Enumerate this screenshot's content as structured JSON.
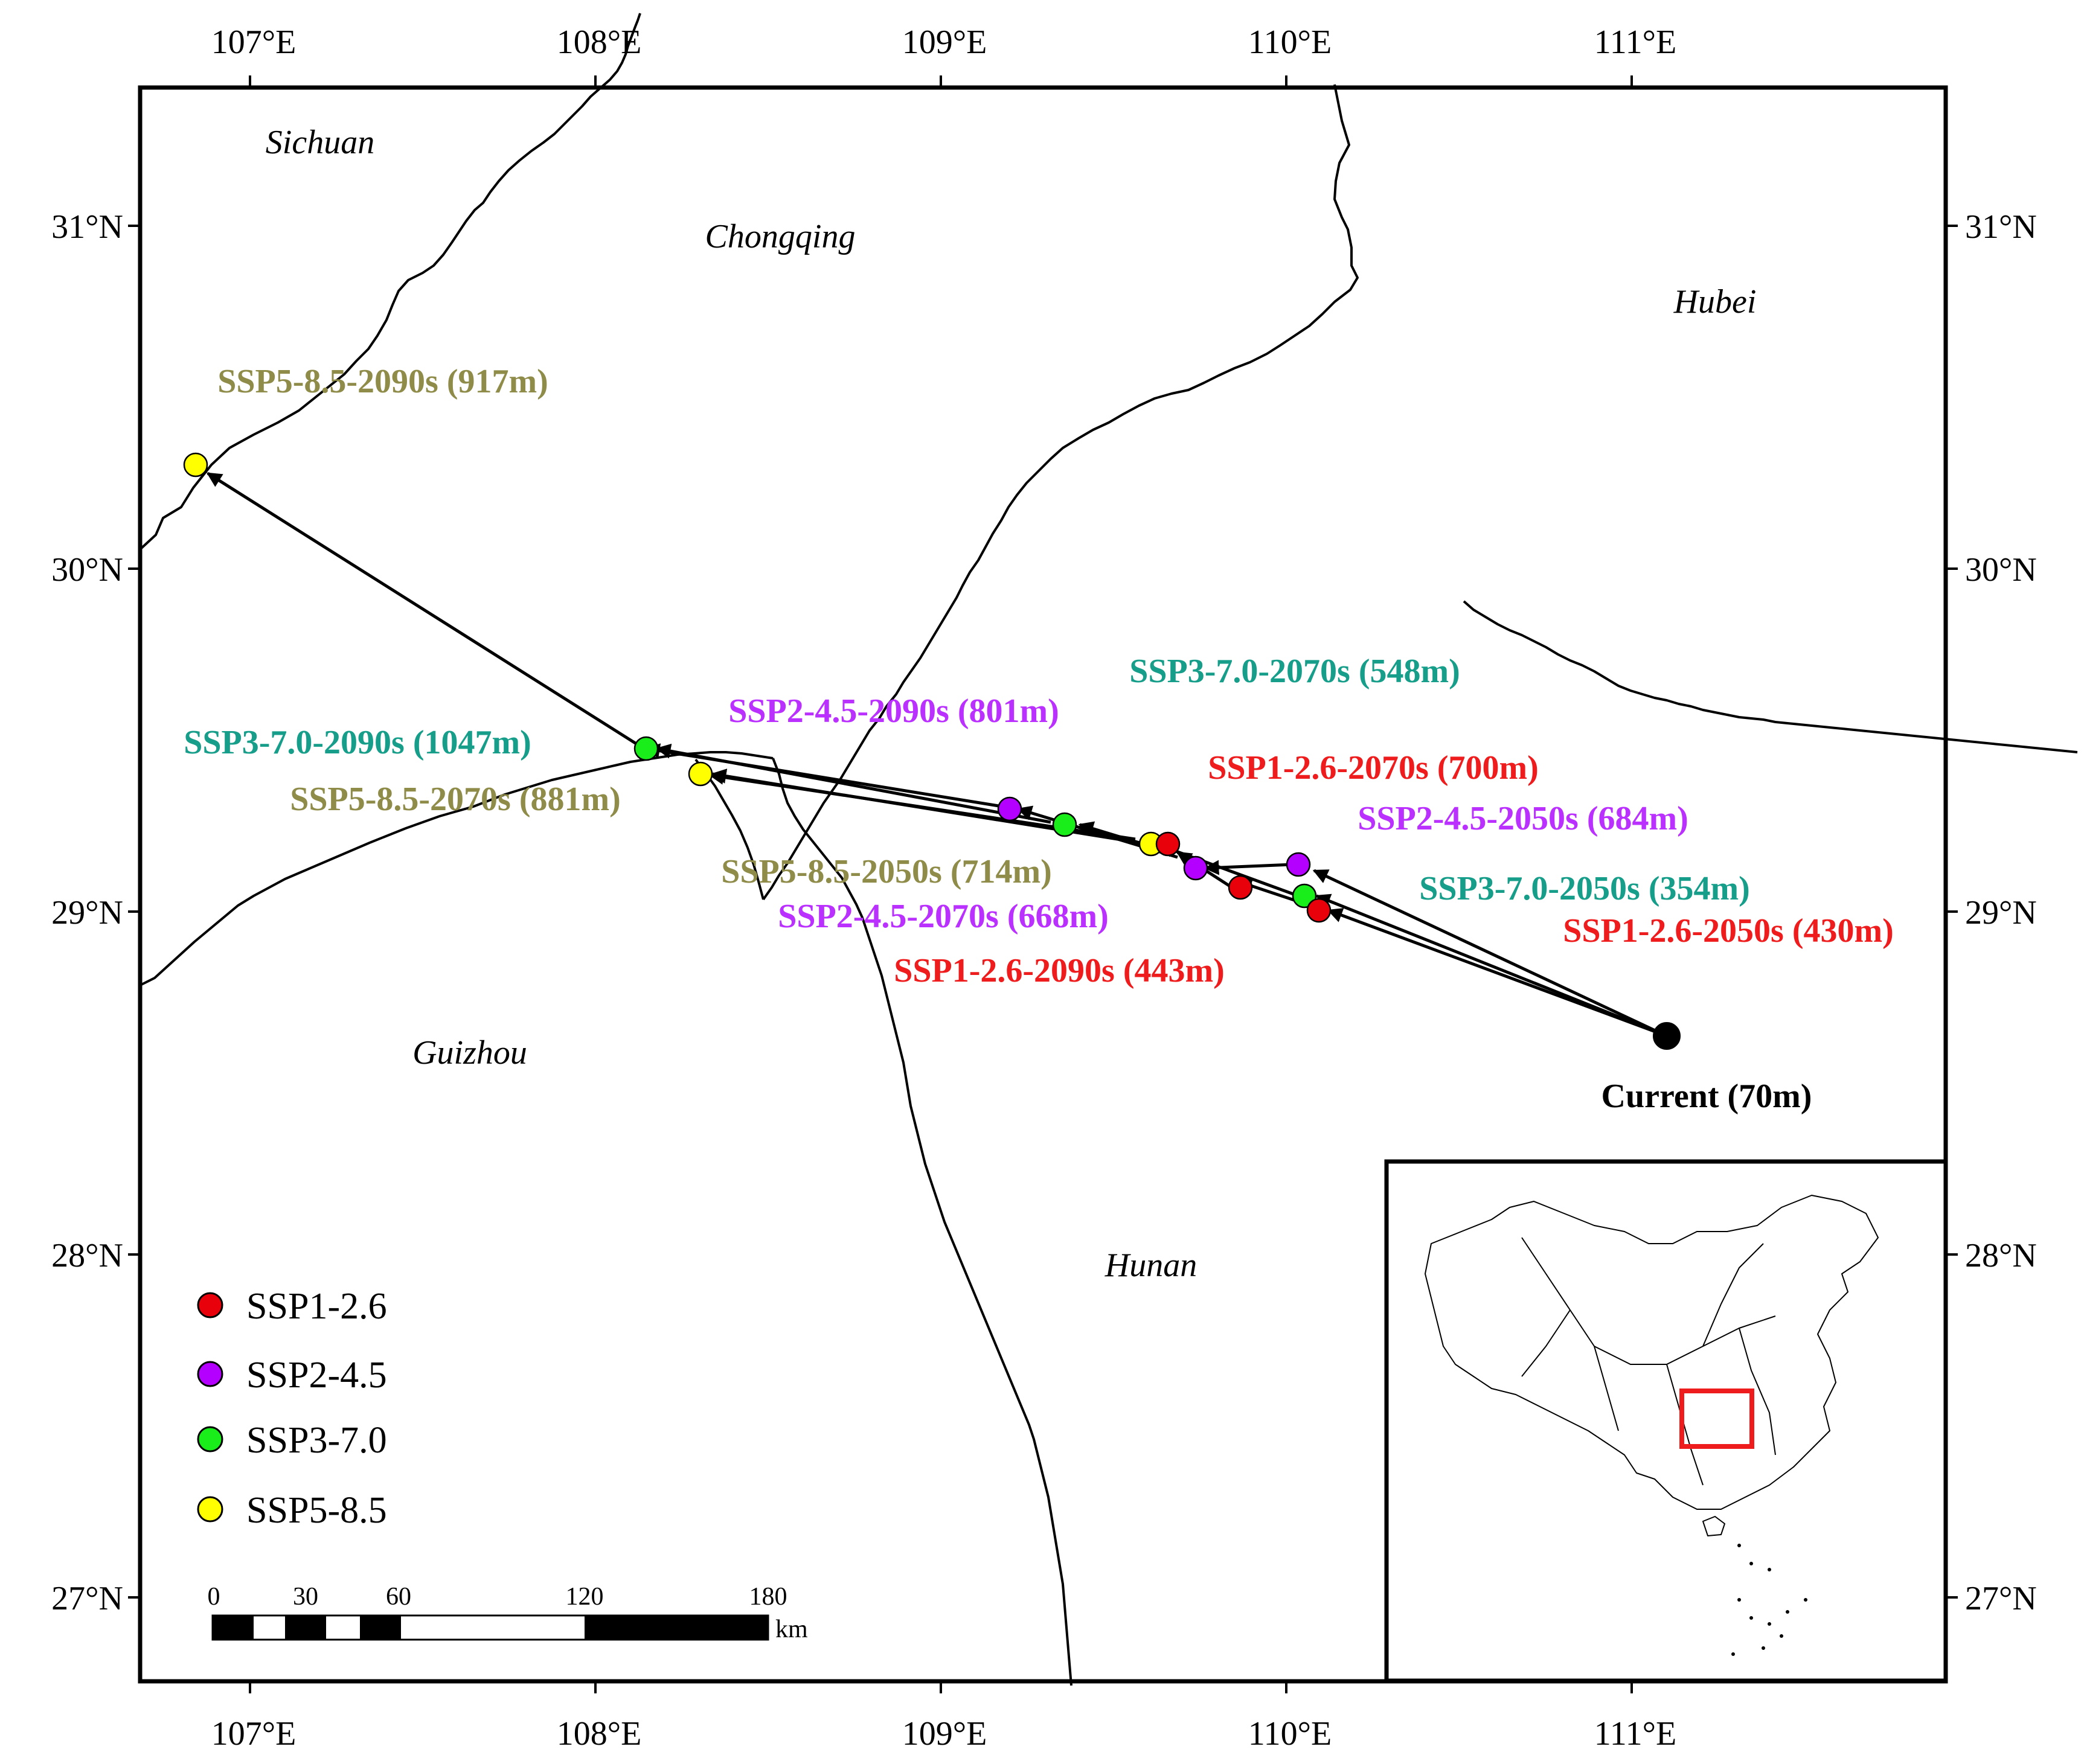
{
  "map": {
    "x_ticks": [
      "107°E",
      "108°E",
      "109°E",
      "110°E",
      "111°E"
    ],
    "y_ticks": [
      "31°N",
      "30°N",
      "29°N",
      "28°N",
      "27°N"
    ],
    "regions": [
      "Sichuan",
      "Chongqing",
      "Hubei",
      "Guizhou",
      "Hunan"
    ],
    "current_label": "Current (70m)",
    "point_labels": [
      {
        "text": "SSP5-8.5-2090s (917m)",
        "scenario": "SSP5-8.5"
      },
      {
        "text": "SSP3-7.0-2070s (548m)",
        "scenario": "SSP3-7.0"
      },
      {
        "text": "SSP2-4.5-2090s (801m)",
        "scenario": "SSP2-4.5"
      },
      {
        "text": "SSP3-7.0-2090s (1047m)",
        "scenario": "SSP3-7.0"
      },
      {
        "text": "SSP1-2.6-2070s (700m)",
        "scenario": "SSP1-2.6"
      },
      {
        "text": "SSP5-8.5-2070s (881m)",
        "scenario": "SSP5-8.5"
      },
      {
        "text": "SSP2-4.5-2050s (684m)",
        "scenario": "SSP2-4.5"
      },
      {
        "text": "SSP5-8.5-2050s (714m)",
        "scenario": "SSP5-8.5"
      },
      {
        "text": "SSP3-7.0-2050s (354m)",
        "scenario": "SSP3-7.0"
      },
      {
        "text": "SSP2-4.5-2070s (668m)",
        "scenario": "SSP2-4.5"
      },
      {
        "text": "SSP1-2.6-2050s (430m)",
        "scenario": "SSP1-2.6"
      },
      {
        "text": "SSP1-2.6-2090s (443m)",
        "scenario": "SSP1-2.6"
      }
    ],
    "legend": [
      {
        "label": "SSP1-2.6",
        "color": "#e8000b"
      },
      {
        "label": "SSP2-4.5",
        "color": "#b300ff"
      },
      {
        "label": "SSP3-7.0",
        "color": "#1aee1a"
      },
      {
        "label": "SSP5-8.5",
        "color": "#ffff00"
      }
    ],
    "label_colors": {
      "SSP1-2.6": "#ee1c1c",
      "SSP2-4.5": "#b930ff",
      "SSP3-7.0": "#169e8a",
      "SSP5-8.5": "#8f8c4a",
      "Current": "#000000"
    },
    "scale_bar": {
      "ticks": [
        "0",
        "30",
        "60",
        "120",
        "180"
      ],
      "unit": "km"
    }
  }
}
